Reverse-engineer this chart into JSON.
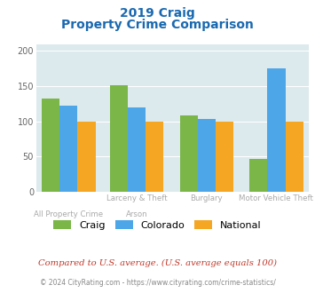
{
  "title_line1": "2019 Craig",
  "title_line2": "Property Crime Comparison",
  "series": {
    "Craig": [
      133,
      152,
      109,
      47
    ],
    "Colorado": [
      123,
      120,
      103,
      175
    ],
    "National": [
      100,
      100,
      100,
      100
    ]
  },
  "colors": {
    "Craig": "#7ab648",
    "Colorado": "#4da6e8",
    "National": "#f5a623"
  },
  "ylim": [
    0,
    210
  ],
  "yticks": [
    0,
    50,
    100,
    150,
    200
  ],
  "plot_bg": "#dce9ed",
  "title_color": "#1a69b0",
  "top_labels": [
    "",
    "Larceny & Theft",
    "Burglary",
    "Motor Vehicle Theft"
  ],
  "bottom_labels": [
    "All Property Crime",
    "Arson",
    "",
    ""
  ],
  "note_text": "Compared to U.S. average. (U.S. average equals 100)",
  "note_color": "#c0392b",
  "footer_text": "© 2024 CityRating.com - https://www.cityrating.com/crime-statistics/",
  "footer_color": "#888888",
  "label_color": "#aaaaaa"
}
